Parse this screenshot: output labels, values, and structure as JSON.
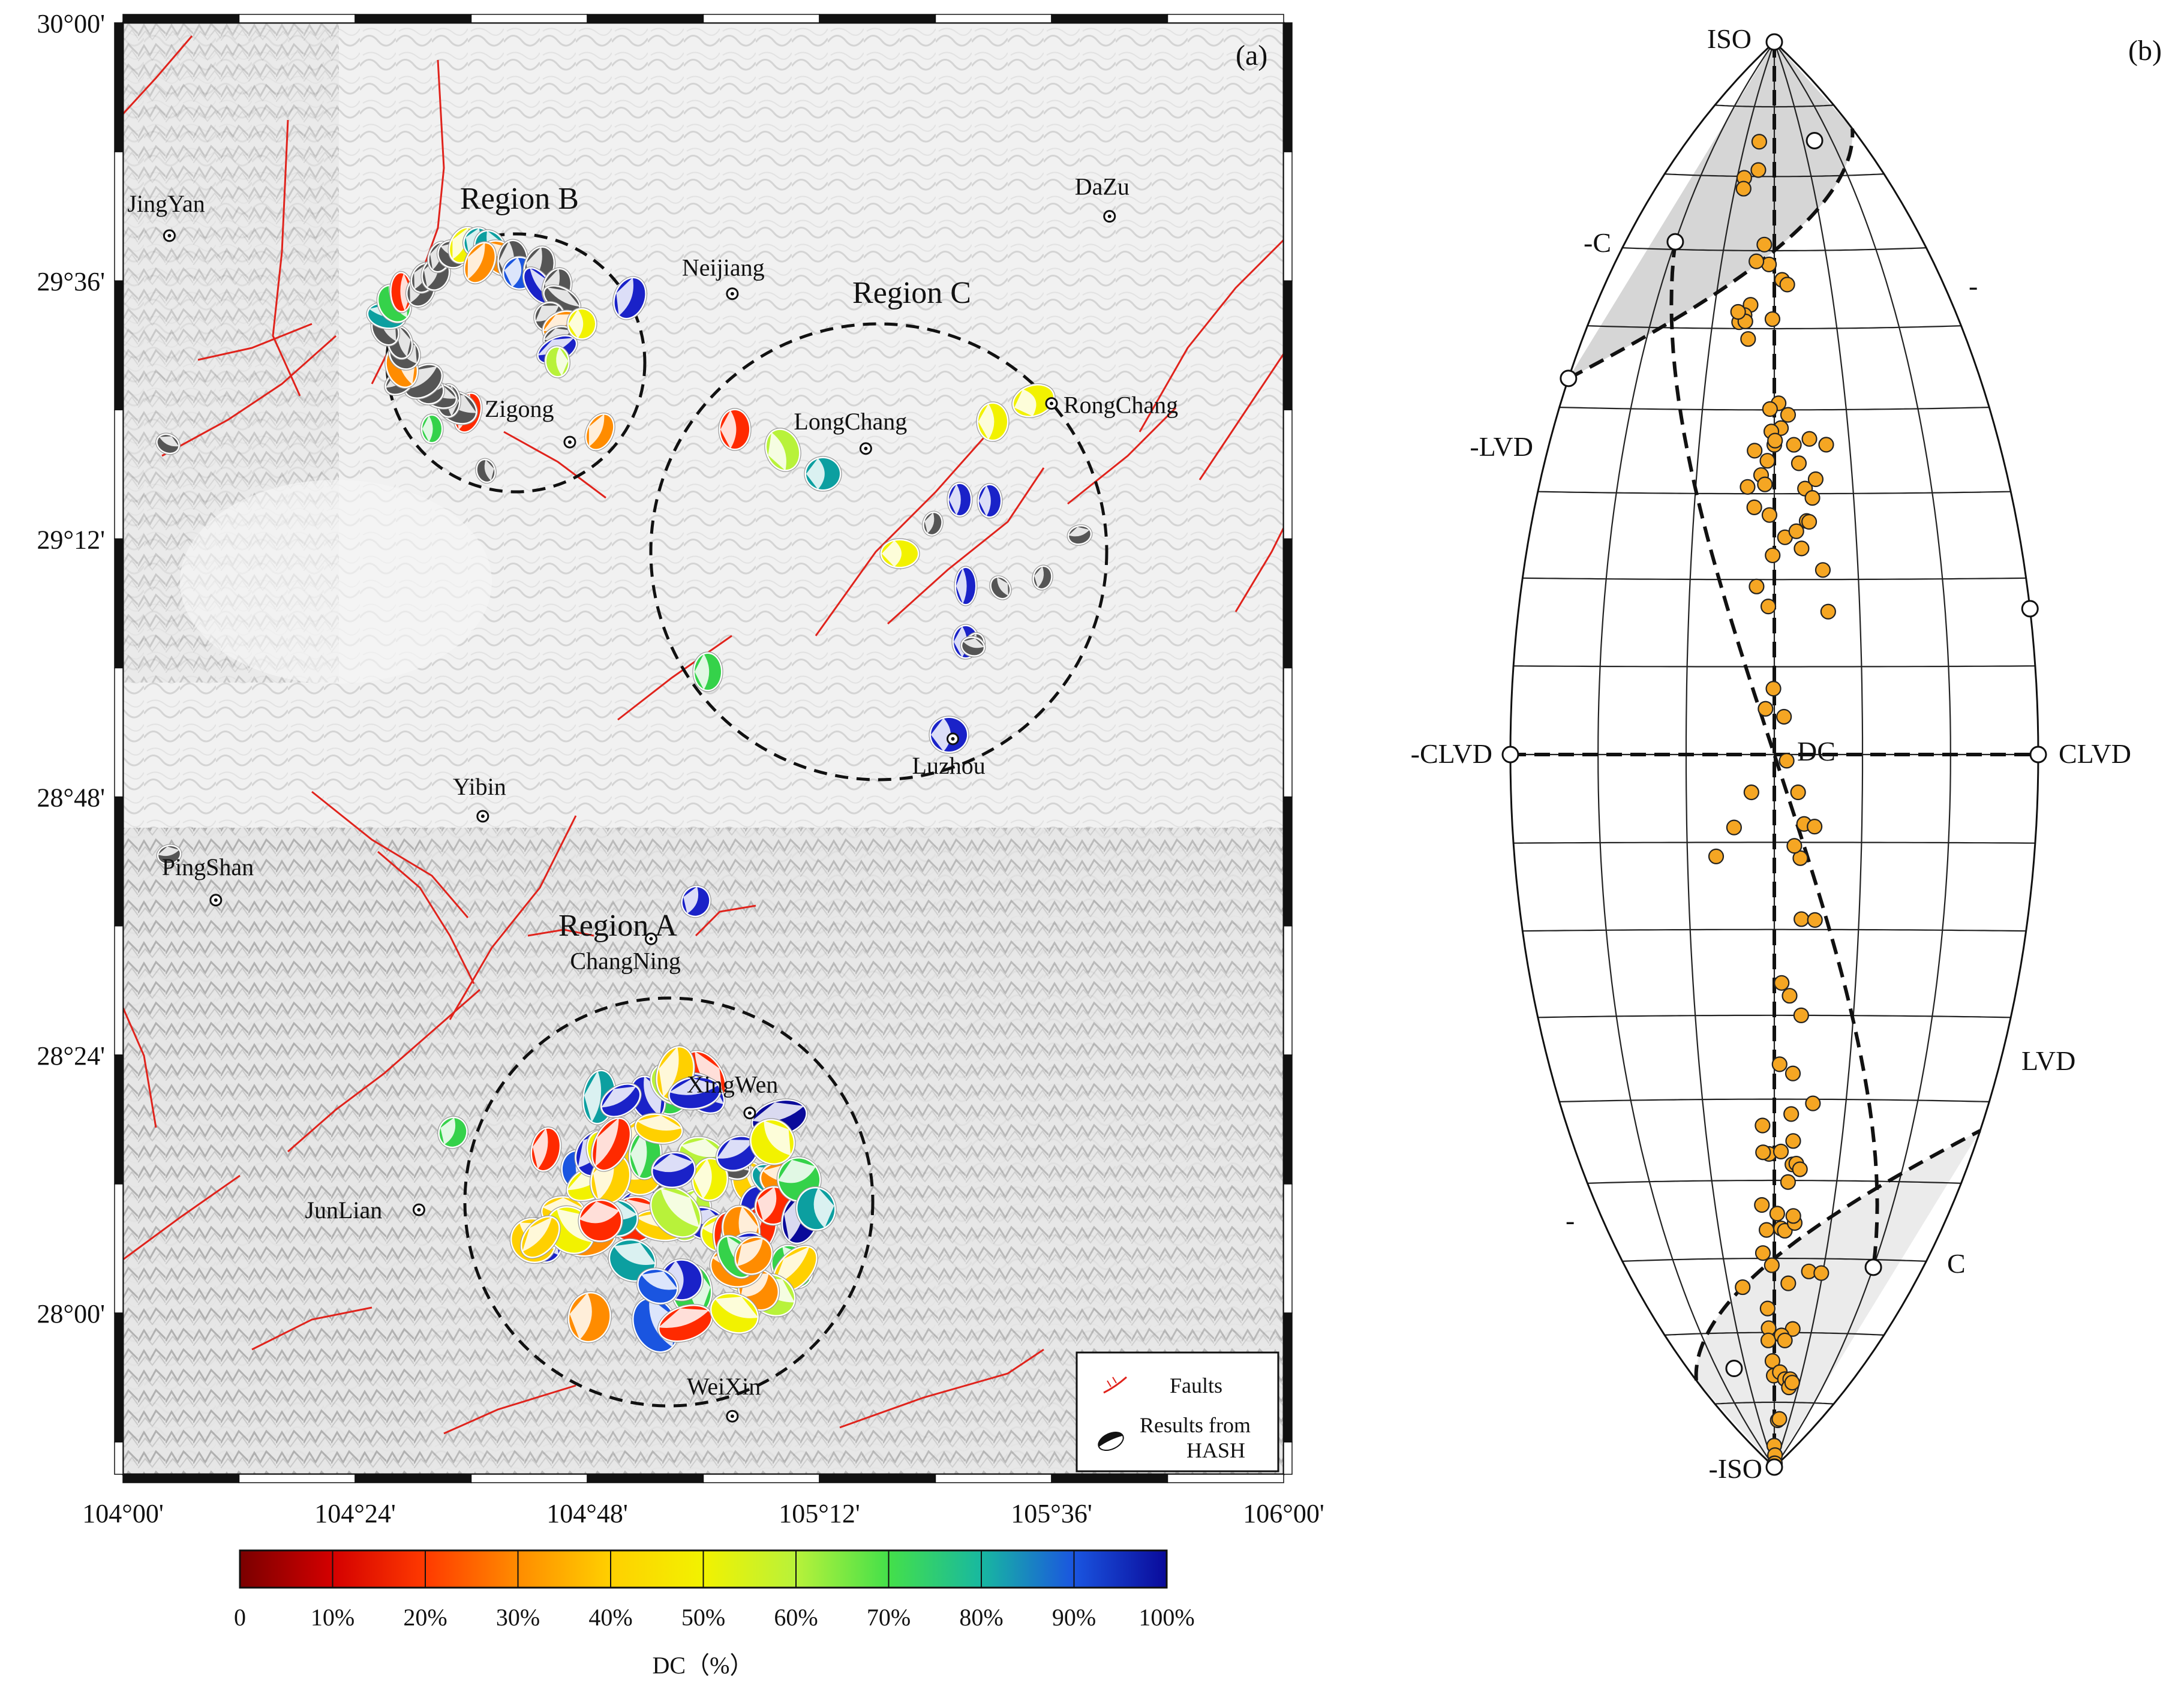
{
  "panel_a": {
    "label": "(a)",
    "lat_ticks": [
      "30°00'",
      "29°36'",
      "29°12'",
      "28°48'",
      "28°24'",
      "28°00'"
    ],
    "lon_ticks": [
      "104°00'",
      "104°24'",
      "104°48'",
      "105°12'",
      "105°36'",
      "106°00'"
    ],
    "cities": [
      {
        "name": "JingYan",
        "lon": 104.08,
        "lat": 29.67
      },
      {
        "name": "DaZu",
        "lon": 105.7,
        "lat": 29.7
      },
      {
        "name": "Neijiang",
        "lon": 105.05,
        "lat": 29.58
      },
      {
        "name": "Zigong",
        "lon": 104.77,
        "lat": 29.35
      },
      {
        "name": "LongChang",
        "lon": 105.28,
        "lat": 29.34
      },
      {
        "name": "RongChang",
        "lon": 105.6,
        "lat": 29.41
      },
      {
        "name": "Luzhou",
        "lon": 105.43,
        "lat": 28.89
      },
      {
        "name": "Yibin",
        "lon": 104.62,
        "lat": 28.77
      },
      {
        "name": "PingShan",
        "lon": 104.16,
        "lat": 28.64
      },
      {
        "name": "ChangNing",
        "lon": 104.91,
        "lat": 28.58
      },
      {
        "name": "XingWen",
        "lon": 105.08,
        "lat": 28.31
      },
      {
        "name": "JunLian",
        "lon": 104.51,
        "lat": 28.16
      },
      {
        "name": "WeiXin",
        "lon": 105.05,
        "lat": 27.84
      }
    ],
    "regions": [
      {
        "name": "Region A"
      },
      {
        "name": "Region B"
      },
      {
        "name": "Region C"
      }
    ],
    "legend": {
      "faults": "Faults",
      "hash_line1": "Results from",
      "hash_line2": "HASH"
    },
    "colorbar": {
      "title": "DC（%）",
      "ticks": [
        "0",
        "10%",
        "20%",
        "30%",
        "40%",
        "50%",
        "60%",
        "70%",
        "80%",
        "90%",
        "100%"
      ],
      "colors": [
        "#7a0000",
        "#d40000",
        "#ff3a00",
        "#ff8c00",
        "#ffd000",
        "#f2f200",
        "#b8f23a",
        "#44e04a",
        "#18b8a0",
        "#1a55e0",
        "#0a0a9a"
      ]
    }
  },
  "panel_b": {
    "label": "(b)",
    "lune_labels": {
      "top": "ISO",
      "bottom": "-ISO",
      "left": "-CLVD",
      "right": "CLVD",
      "center": "DC",
      "c_upper_left": "-C",
      "c_lower_right": "C",
      "lvd_left": "-LVD",
      "lvd_right": "LVD",
      "dash_upper_right": "-",
      "dash_lower_left": "-"
    },
    "colors": {
      "points": "#f5a623",
      "shade": "#d9d9d9"
    }
  },
  "chart_data": {
    "type": "scatter",
    "title": "",
    "xlabel": "",
    "ylabel": "",
    "xlim": [
      -30,
      30
    ],
    "ylim": [
      -90,
      90
    ],
    "x": [
      -5.2,
      -4.5,
      -8.1,
      -7.8,
      -2.0,
      -1.0,
      -3.4,
      1.4,
      2.3,
      -4.0,
      -4.9,
      -5.7,
      -4.7,
      -6.0,
      -0.3,
      -4.1,
      0.6,
      1.9,
      -0.6,
      0.9,
      3.2,
      2.6,
      4.7,
      6.9,
      -0.4,
      -2.6,
      4.0,
      3.9,
      4.8,
      5.3,
      -0.2,
      1.3,
      2.7,
      4.3,
      -0.6,
      -2.5,
      -3.4,
      -1.7,
      -1.2,
      0.0,
      -0.9,
      0.1,
      3.3,
      5.8,
      6.3,
      -2.1,
      -0.7,
      -0.1,
      -1.0,
      1.1,
      1.4,
      2.7,
      3.4,
      4.6,
      3.0,
      2.3,
      3.2,
      4.8,
      0.9,
      -4.6,
      -6.7,
      -2.6,
      1.9,
      3.4,
      0.7,
      2.5,
      5.4,
      2.4,
      -1.7,
      -0.8,
      1.0,
      -1.7,
      2.8,
      2.8,
      3.4,
      4.0,
      2.2,
      -2.1,
      0.5,
      1.2,
      1.9,
      3.6,
      3.3,
      -1.4,
      -2.2,
      7.1,
      -0.5,
      3.0,
      4.9,
      9.7,
      -6.9,
      -1.6,
      -1.5,
      -1.7,
      2.0,
      3.0,
      -0.6,
      -0.2,
      2.0,
      4.1,
      6.1,
      6.1,
      7.1,
      2.3,
      3.3,
      -0.1,
      1.7,
      1.3,
      4.6
    ],
    "y": [
      74.9,
      70.9,
      69.8,
      68.3,
      60.8,
      58.2,
      58.6,
      56.2,
      55.6,
      53.0,
      51.7,
      50.8,
      50.9,
      52.1,
      51.2,
      48.7,
      40.8,
      39.4,
      40.1,
      37.8,
      33.6,
      35.8,
      36.5,
      35.8,
      37.4,
      35.1,
      26.8,
      30.6,
      29.5,
      31.7,
      22.8,
      24.9,
      25.6,
      26.7,
      27.5,
      28.4,
      30.8,
      32.2,
      31.1,
      35.8,
      33.9,
      36.3,
      23.6,
      21.1,
      16.3,
      19.2,
      16.9,
      7.5,
      5.2,
      4.3,
      -0.7,
      -4.3,
      -7.9,
      -8.2,
      -11.8,
      -10.4,
      -18.8,
      -18.9,
      -26.2,
      -8.3,
      -11.6,
      -4.3,
      -27.7,
      -30.0,
      -35.8,
      -36.9,
      -40.5,
      -41.8,
      -43.2,
      -46.7,
      -46.4,
      -46.5,
      -48.0,
      -45.1,
      -47.9,
      -48.6,
      -50.2,
      -53.1,
      -54.2,
      -56.1,
      -56.4,
      -55.4,
      -54.5,
      -56.3,
      -59.3,
      -61.7,
      -60.9,
      -63.3,
      -69.5,
      -61.9,
      -63.8,
      -66.7,
      -69.4,
      -71.1,
      -70.4,
      -71.1,
      -74.0,
      -76.1,
      -75.6,
      -76.6,
      -76.6,
      -77.8,
      -77.1,
      -82.7,
      -82.5,
      -86.6,
      -88.1,
      -89.4,
      -89.4
    ],
    "grid": true,
    "legend": "none"
  }
}
